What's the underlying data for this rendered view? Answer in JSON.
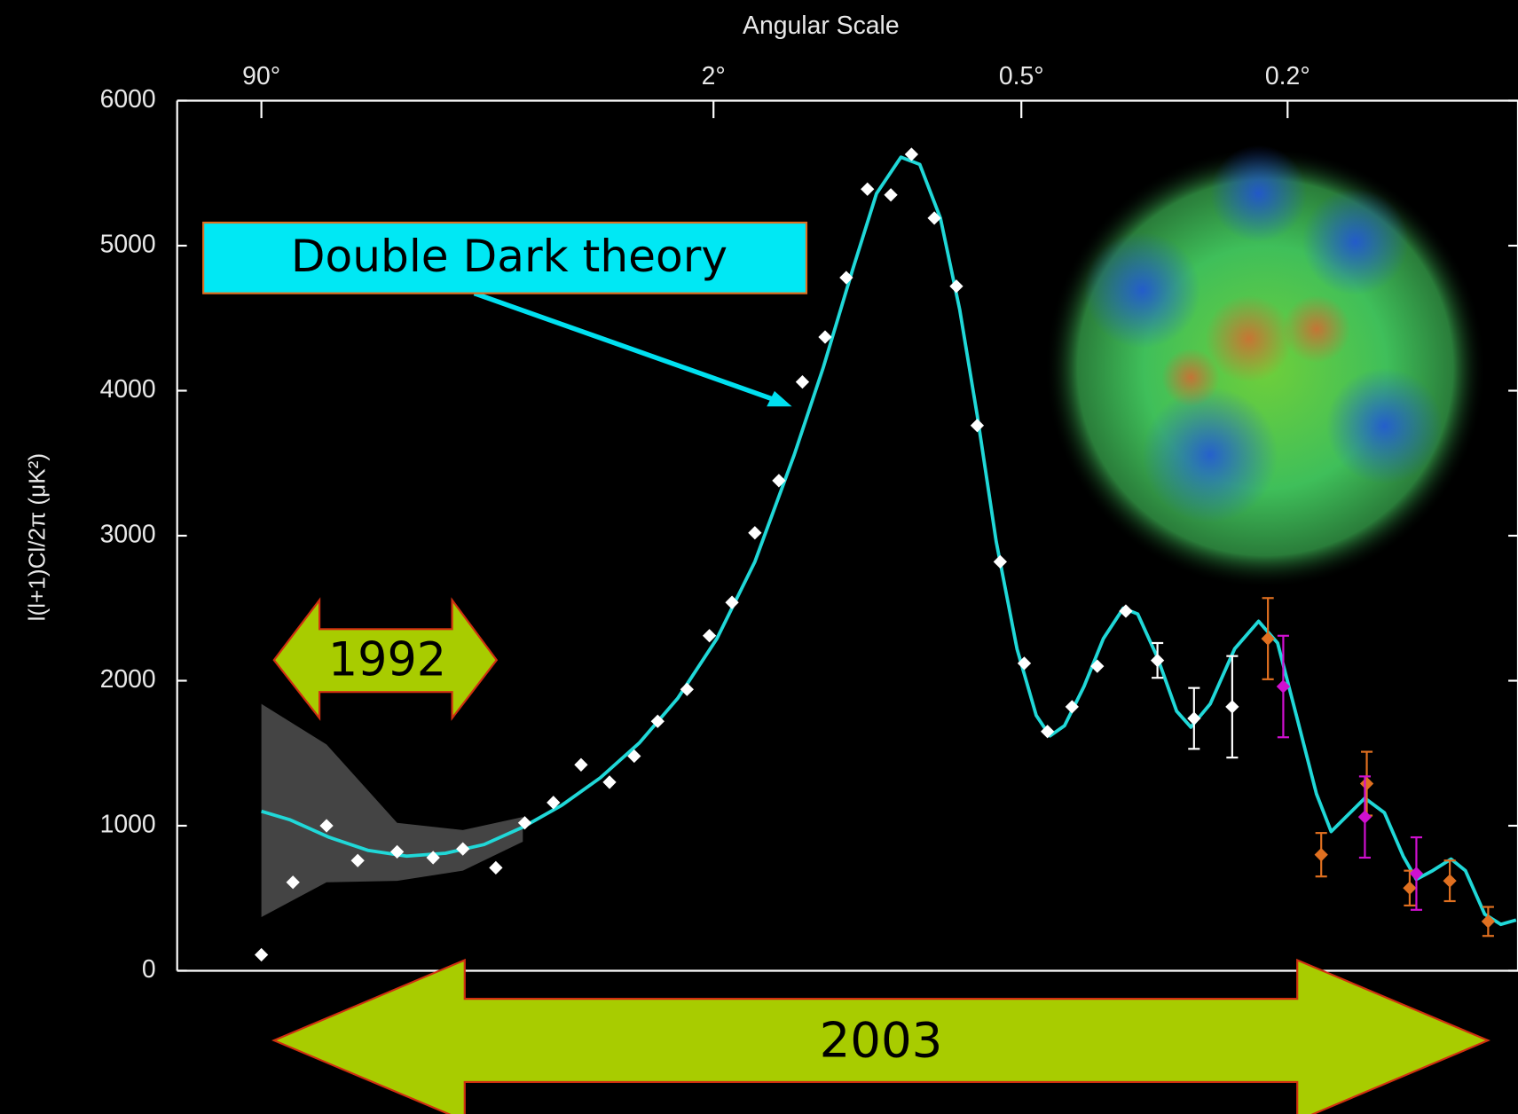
{
  "chart_data": {
    "type": "scatter",
    "x_label": "Angular Scale",
    "y_label": "l(l+1)Cl/2π (μK²)",
    "xlim": [
      180,
      0.09
    ],
    "xticks": [
      {
        "value": 90,
        "label": "90°"
      },
      {
        "value": 2,
        "label": "2°"
      },
      {
        "value": 0.5,
        "label": "0.5°"
      },
      {
        "value": 0.2,
        "label": "0.2°"
      }
    ],
    "ylim": [
      0,
      6000
    ],
    "yticks": [
      0,
      1000,
      2000,
      3000,
      4000,
      5000,
      6000
    ],
    "series": [
      {
        "color": "#ffffff",
        "x": [
          90,
          69,
          52,
          40,
          28.7,
          21.2,
          16.5,
          12.5,
          9.8,
          7.7,
          6.1,
          4.8,
          3.9,
          3.2,
          2.5,
          2.07,
          1.84,
          1.66,
          1.49,
          1.34,
          1.21,
          1.1,
          1.0,
          0.9,
          0.82,
          0.74,
          0.67,
          0.61,
          0.55,
          0.495,
          0.457,
          0.42,
          0.385,
          0.349,
          0.313,
          0.276,
          0.242
        ],
        "values": [
          110,
          610,
          1000,
          760,
          820,
          780,
          840,
          710,
          1020,
          1160,
          1420,
          1300,
          1480,
          1720,
          1940,
          2310,
          2540,
          3020,
          3380,
          4060,
          4370,
          4780,
          5390,
          5350,
          5630,
          5190,
          4720,
          3760,
          2820,
          2120,
          1650,
          1820,
          2100,
          2480,
          2140,
          1740,
          1820
        ],
        "errors": [
          null,
          null,
          null,
          null,
          null,
          null,
          null,
          null,
          null,
          null,
          null,
          null,
          null,
          null,
          null,
          null,
          null,
          null,
          null,
          null,
          null,
          null,
          null,
          null,
          null,
          null,
          null,
          null,
          null,
          null,
          null,
          null,
          null,
          null,
          120,
          210,
          350
        ]
      },
      {
        "color": "#e07020",
        "x": [
          0.214,
          0.178,
          0.152,
          0.131,
          0.114,
          0.0998
        ],
        "values": [
          2290,
          800,
          1290,
          570,
          620,
          340
        ],
        "errors": [
          280,
          150,
          220,
          120,
          140,
          100
        ]
      },
      {
        "color": "#d010d0",
        "x": [
          0.203,
          0.153,
          0.128
        ],
        "values": [
          1960,
          1060,
          670
        ],
        "errors": [
          350,
          280,
          250
        ]
      }
    ],
    "theory_curve": {
      "color": "#20d8d8",
      "x": [
        90,
        70.5,
        50.8,
        36.7,
        26.5,
        19.1,
        13.8,
        9.96,
        7.19,
        5.19,
        3.74,
        2.7,
        1.97,
        1.66,
        1.39,
        1.22,
        1.07,
        0.96,
        0.86,
        0.79,
        0.72,
        0.66,
        0.61,
        0.56,
        0.51,
        0.475,
        0.453,
        0.431,
        0.403,
        0.377,
        0.352,
        0.335,
        0.313,
        0.293,
        0.279,
        0.261,
        0.24,
        0.221,
        0.207,
        0.194,
        0.181,
        0.172,
        0.161,
        0.153,
        0.143,
        0.134,
        0.128,
        0.121,
        0.1135,
        0.108,
        0.101,
        0.0955,
        0.0906
      ],
      "values": [
        1100,
        1040,
        920,
        830,
        790,
        810,
        870,
        990,
        1140,
        1330,
        1570,
        1880,
        2290,
        2820,
        3560,
        4160,
        4830,
        5360,
        5610,
        5560,
        5190,
        4560,
        3830,
        2960,
        2220,
        1760,
        1620,
        1690,
        1960,
        2290,
        2500,
        2460,
        2160,
        1790,
        1680,
        1840,
        2220,
        2410,
        2260,
        1760,
        1220,
        960,
        1090,
        1190,
        1090,
        790,
        630,
        690,
        770,
        690,
        390,
        320,
        350
      ]
    },
    "variance_band": {
      "color": "#505050",
      "x": [
        90,
        52,
        28.7,
        16.5,
        9.96
      ],
      "upper": [
        1840,
        1560,
        1020,
        970,
        1060
      ],
      "lower": [
        370,
        610,
        620,
        690,
        890
      ]
    },
    "annotations": [
      "Double Dark theory",
      "1992",
      "2003"
    ]
  }
}
